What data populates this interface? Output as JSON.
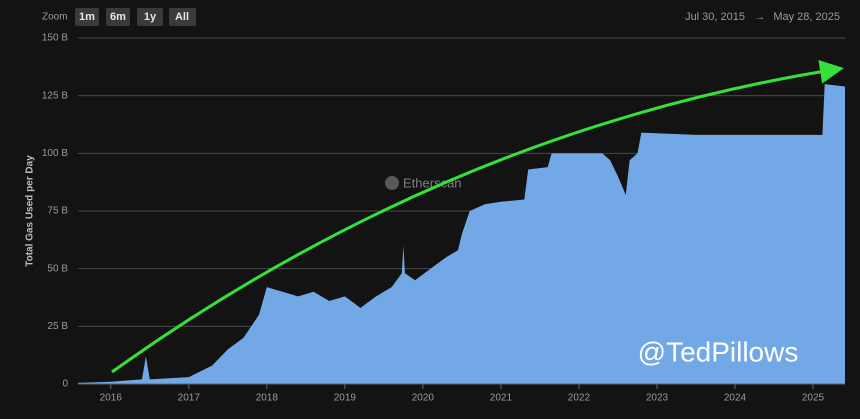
{
  "toolbar": {
    "zoom_label": "Zoom",
    "buttons": [
      "1m",
      "6m",
      "1y",
      "All"
    ],
    "date_from": "Jul 30, 2015",
    "arrow": "→",
    "date_to": "May 28, 2025"
  },
  "watermark": "Etherscan",
  "credit": "@TedPillows",
  "chart_data": {
    "type": "area",
    "y_label": "Total Gas Used per Day",
    "color": "#72a8e6",
    "x": [
      2015.58,
      2016.0,
      2016.4,
      2016.45,
      2016.5,
      2017.0,
      2017.3,
      2017.5,
      2017.7,
      2017.9,
      2018.0,
      2018.2,
      2018.4,
      2018.6,
      2018.8,
      2019.0,
      2019.2,
      2019.4,
      2019.6,
      2019.73,
      2019.75,
      2019.77,
      2019.9,
      2020.1,
      2020.3,
      2020.45,
      2020.5,
      2020.6,
      2020.8,
      2021.0,
      2021.3,
      2021.35,
      2021.6,
      2021.65,
      2022.0,
      2022.3,
      2022.4,
      2022.5,
      2022.6,
      2022.65,
      2022.75,
      2022.8,
      2023.5,
      2024.0,
      2024.5,
      2025.0,
      2025.12,
      2025.15,
      2025.41
    ],
    "values": [
      0.5,
      1,
      2,
      12,
      2,
      3,
      8,
      15,
      20,
      30,
      42,
      40,
      38,
      40,
      36,
      38,
      33,
      38,
      42,
      48,
      60,
      48,
      45,
      50,
      55,
      58,
      65,
      75,
      78,
      79,
      80,
      93,
      94,
      100,
      100,
      100,
      97,
      90,
      82,
      97,
      100,
      109,
      108,
      108,
      108,
      108,
      108,
      130,
      129
    ],
    "xlim": [
      2015.58,
      2025.41
    ],
    "xticks": [
      2016,
      2017,
      2018,
      2019,
      2020,
      2021,
      2022,
      2023,
      2024,
      2025
    ],
    "ylim": [
      0,
      150
    ],
    "yticks": [
      0,
      {
        "value": 25,
        "label": "25 B"
      },
      {
        "value": 50,
        "label": "50 B"
      },
      {
        "value": 75,
        "label": "75 B"
      },
      {
        "value": 100,
        "label": "100 B"
      },
      {
        "value": 125,
        "label": "125 B"
      },
      {
        "value": 150,
        "label": "150 B"
      }
    ],
    "grid": true
  }
}
